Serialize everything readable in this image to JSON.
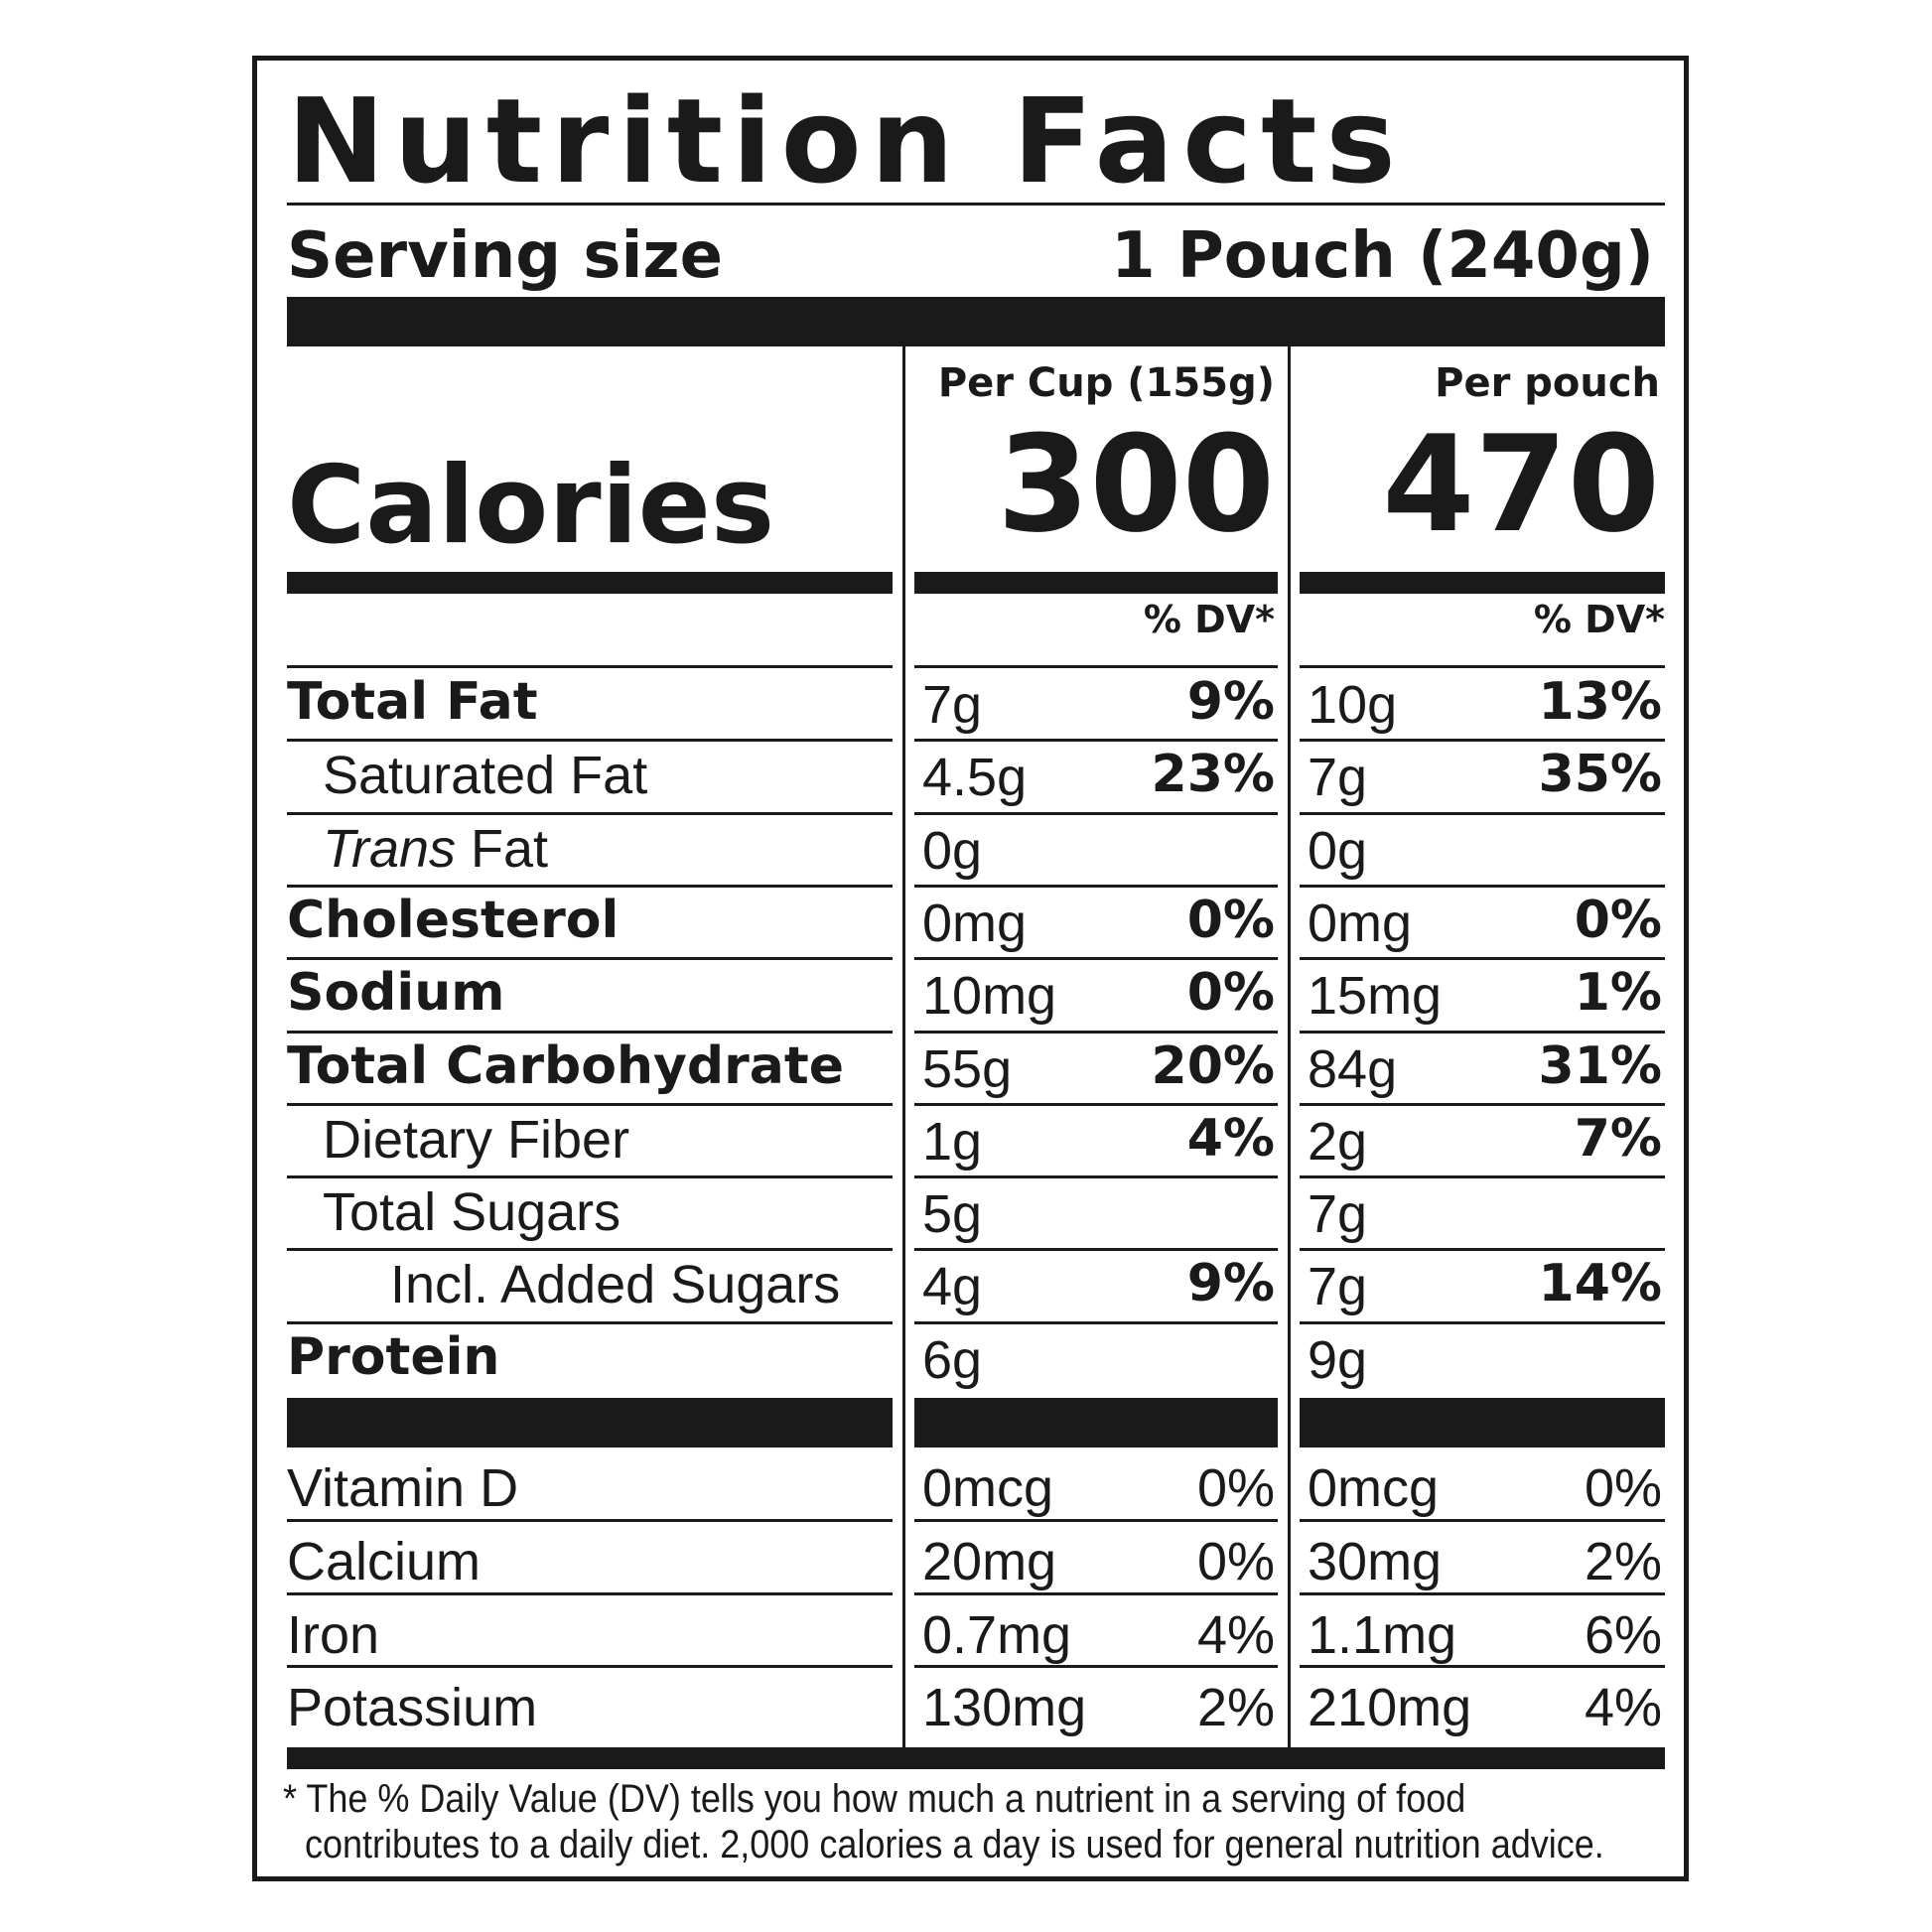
{
  "title": "Nutrition Facts",
  "serving": {
    "label": "Serving size",
    "value": "1 Pouch (240g)"
  },
  "calories": {
    "label": "Calories",
    "columns": [
      {
        "header": "Per Cup (155g)",
        "value": "300",
        "dv_header": "% DV*"
      },
      {
        "header": "Per pouch",
        "value": "470",
        "dv_header": "% DV*"
      }
    ]
  },
  "nutrients": [
    {
      "name": "Total Fat",
      "bold": true,
      "cup": "7g",
      "cup_dv": "9%",
      "pouch": "10g",
      "pouch_dv": "13%"
    },
    {
      "name": "Saturated Fat",
      "bold": false,
      "cup": "4.5g",
      "cup_dv": "23%",
      "pouch": "7g",
      "pouch_dv": "35%"
    },
    {
      "name_italic": "Trans",
      "name": " Fat",
      "bold": false,
      "cup": "0g",
      "cup_dv": "",
      "pouch": "0g",
      "pouch_dv": ""
    },
    {
      "name": "Cholesterol",
      "bold": true,
      "cup": "0mg",
      "cup_dv": "0%",
      "pouch": "0mg",
      "pouch_dv": "0%"
    },
    {
      "name": "Sodium",
      "bold": true,
      "cup": "10mg",
      "cup_dv": "0%",
      "pouch": "15mg",
      "pouch_dv": "1%"
    },
    {
      "name": "Total Carbohydrate",
      "bold": true,
      "cup": "55g",
      "cup_dv": "20%",
      "pouch": "84g",
      "pouch_dv": "31%"
    },
    {
      "name": "Dietary Fiber",
      "bold": false,
      "cup": "1g",
      "cup_dv": "4%",
      "pouch": "2g",
      "pouch_dv": "7%"
    },
    {
      "name": "Total Sugars",
      "bold": false,
      "cup": "5g",
      "cup_dv": "",
      "pouch": "7g",
      "pouch_dv": ""
    },
    {
      "name": "Incl. Added Sugars",
      "bold": false,
      "cup": "4g",
      "cup_dv": "9%",
      "pouch": "7g",
      "pouch_dv": "14%"
    },
    {
      "name": "Protein",
      "bold": true,
      "cup": "6g",
      "cup_dv": "",
      "pouch": "9g",
      "pouch_dv": ""
    }
  ],
  "vitamins": [
    {
      "name": "Vitamin D",
      "cup": "0mcg",
      "cup_dv": "0%",
      "pouch": "0mcg",
      "pouch_dv": "0%"
    },
    {
      "name": "Calcium",
      "cup": "20mg",
      "cup_dv": "0%",
      "pouch": "30mg",
      "pouch_dv": "2%"
    },
    {
      "name": "Iron",
      "cup": "0.7mg",
      "cup_dv": "4%",
      "pouch": "1.1mg",
      "pouch_dv": "6%"
    },
    {
      "name": "Potassium",
      "cup": "130mg",
      "cup_dv": "2%",
      "pouch": "210mg",
      "pouch_dv": "4%"
    }
  ],
  "footnote": {
    "line1": "* The % Daily Value (DV) tells you how much a nutrient in a serving of food",
    "line2": "contributes to a daily diet. 2,000 calories a day is used for general nutrition advice."
  }
}
